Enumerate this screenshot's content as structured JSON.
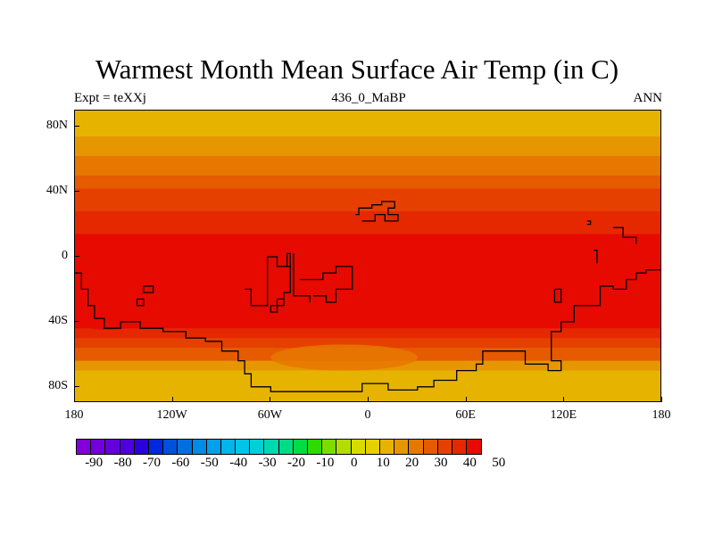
{
  "title": "Warmest Month Mean Surface Air Temp (in C)",
  "subtitle_left": "Expt = teXXj",
  "subtitle_center": "436_0_MaBP",
  "subtitle_right": "ANN",
  "map": {
    "projection": "cylindrical-equidistant",
    "lon_range": [
      -180,
      180
    ],
    "lat_range": [
      -90,
      90
    ],
    "y_ticks": [
      "80N",
      "40N",
      "0",
      "40S",
      "80S"
    ],
    "x_ticks": [
      "180",
      "120W",
      "60W",
      "0",
      "60E",
      "120E",
      "180"
    ],
    "coastline_color": "#000000",
    "temperature_bands": [
      {
        "lat_from": 90,
        "lat_to": 74,
        "value": 5
      },
      {
        "lat_from": 74,
        "lat_to": 62,
        "value": 10
      },
      {
        "lat_from": 62,
        "lat_to": 50,
        "value": 15
      },
      {
        "lat_from": 50,
        "lat_to": 42,
        "value": 20
      },
      {
        "lat_from": 42,
        "lat_to": 28,
        "value": 25
      },
      {
        "lat_from": 28,
        "lat_to": 14,
        "value": 30
      },
      {
        "lat_from": 14,
        "lat_to": -2,
        "value": 35
      },
      {
        "lat_from": -2,
        "lat_to": -30,
        "value": 40
      },
      {
        "lat_from": -30,
        "lat_to": -44,
        "value": 35
      },
      {
        "lat_from": -44,
        "lat_to": -50,
        "value": 30
      },
      {
        "lat_from": -50,
        "lat_to": -56,
        "value": 25
      },
      {
        "lat_from": -56,
        "lat_to": -64,
        "value": 20
      },
      {
        "lat_from": -64,
        "lat_to": -70,
        "value": 10
      },
      {
        "lat_from": -70,
        "lat_to": -90,
        "value": 5
      }
    ]
  },
  "colorbar": {
    "labels": [
      "-90",
      "-80",
      "-70",
      "-60",
      "-50",
      "-40",
      "-30",
      "-20",
      "-10",
      "0",
      "10",
      "20",
      "30",
      "40",
      "50"
    ],
    "colors": [
      "#8200dc",
      "#7300dc",
      "#6400dc",
      "#4d00dc",
      "#2a00dc",
      "#0028dc",
      "#0050dc",
      "#0070e0",
      "#008ce6",
      "#00a0ec",
      "#00b4ee",
      "#00c4e8",
      "#00d0d4",
      "#00d8b0",
      "#00dc86",
      "#00dc46",
      "#2cdc00",
      "#7cdc00",
      "#b4dc00",
      "#d6dc00",
      "#e6d000",
      "#e6b400",
      "#e69600",
      "#e67800",
      "#e65a00",
      "#e64000",
      "#e62800",
      "#e60a00"
    ]
  }
}
